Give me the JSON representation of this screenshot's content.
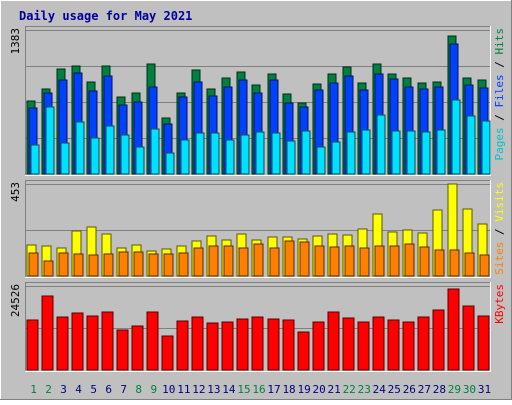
{
  "chart_data": {
    "type": "bar",
    "title": "Daily usage for May 2021",
    "categories": [
      "1",
      "2",
      "3",
      "4",
      "5",
      "6",
      "7",
      "8",
      "9",
      "10",
      "11",
      "12",
      "13",
      "14",
      "15",
      "16",
      "17",
      "18",
      "19",
      "20",
      "21",
      "22",
      "23",
      "24",
      "25",
      "26",
      "27",
      "28",
      "29",
      "30",
      "31"
    ],
    "weekend_days": [
      "1",
      "2",
      "8",
      "9",
      "15",
      "16",
      "22",
      "23",
      "29",
      "30"
    ],
    "panels": [
      {
        "id": "hits",
        "ymax_label": "1383",
        "ymax": 1383,
        "axis_labels": [
          {
            "text": "Pages",
            "color": "#00c0d0"
          },
          {
            "text": "Files",
            "color": "#0040ff"
          },
          {
            "text": "Hits",
            "color": "#008040"
          }
        ],
        "series": [
          {
            "name": "Hits",
            "color": "#008040",
            "values": [
              700,
              820,
              1010,
              1040,
              880,
              1040,
              740,
              780,
              1060,
              540,
              780,
              1000,
              820,
              920,
              980,
              850,
              960,
              770,
              680,
              860,
              960,
              1030,
              870,
              1060,
              960,
              920,
              870,
              880,
              1330,
              920,
              900
            ]
          },
          {
            "name": "Files",
            "color": "#0040ff",
            "values": [
              630,
              780,
              900,
              970,
              800,
              940,
              660,
              690,
              840,
              480,
              740,
              880,
              750,
              840,
              900,
              780,
              900,
              680,
              640,
              810,
              870,
              940,
              810,
              960,
              910,
              840,
              820,
              840,
              1250,
              850,
              830
            ]
          },
          {
            "name": "Pages",
            "color": "#00e0ff",
            "values": [
              280,
              640,
              300,
              500,
              350,
              460,
              370,
              260,
              430,
              200,
              330,
              390,
              390,
              330,
              370,
              400,
              390,
              320,
              410,
              260,
              310,
              400,
              420,
              570,
              410,
              410,
              400,
              420,
              710,
              560,
              510
            ]
          }
        ]
      },
      {
        "id": "visits",
        "ymax_label": "453",
        "ymax": 453,
        "axis_labels": [
          {
            "text": "Sites",
            "color": "#ff8000"
          },
          {
            "text": "Visits",
            "color": "#ffff00"
          }
        ],
        "series": [
          {
            "name": "Visits",
            "color": "#ffff00",
            "values": [
              155,
              150,
              140,
              220,
              240,
              205,
              140,
              155,
              125,
              135,
              150,
              170,
              195,
              175,
              205,
              175,
              190,
              190,
              180,
              195,
              205,
              200,
              230,
              305,
              215,
              225,
              210,
              325,
              453,
              330,
              255
            ]
          },
          {
            "name": "Sites",
            "color": "#ff8000",
            "values": [
              115,
              75,
              115,
              110,
              105,
              110,
              120,
              120,
              110,
              110,
              115,
              140,
              150,
              150,
              140,
              160,
              140,
              170,
              165,
              150,
              145,
              150,
              140,
              150,
              150,
              160,
              145,
              130,
              130,
              115,
              105
            ]
          }
        ]
      },
      {
        "id": "kbytes",
        "ymax_label": "24526",
        "ymax": 24526,
        "axis_labels": [
          {
            "text": "KBytes",
            "color": "#ff0000"
          }
        ],
        "series": [
          {
            "name": "KBytes",
            "color": "#ff0000",
            "values": [
              14600,
              21600,
              15500,
              16600,
              15800,
              17000,
              11700,
              12900,
              16900,
              9800,
              14200,
              15400,
              13800,
              13900,
              14800,
              15400,
              15000,
              14600,
              11100,
              13900,
              16900,
              15300,
              14000,
              15400,
              14500,
              13900,
              15500,
              17500,
              23600,
              18600,
              15900
            ]
          }
        ]
      }
    ]
  },
  "colors": {
    "background": "#c0c0c0",
    "title": "#0000a0",
    "label_normal": "#000080",
    "label_weekend": "#008040",
    "gridline": "#808080"
  }
}
